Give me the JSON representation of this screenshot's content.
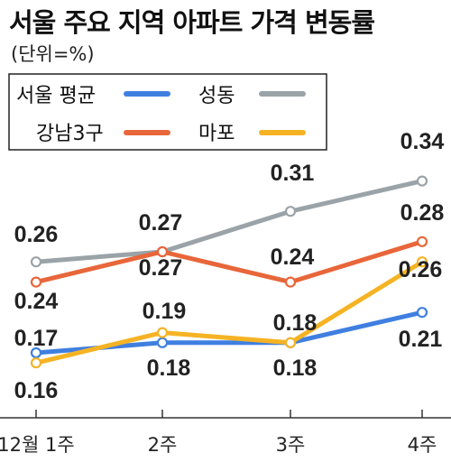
{
  "chart_data": {
    "type": "line",
    "title": "서울 주요 지역 아파트 가격 변동률",
    "subtitle": "(단위=%)",
    "categories": [
      "12월 1주",
      "2주",
      "3주",
      "4주"
    ],
    "series": [
      {
        "name": "서울 평균",
        "color": "#3f7fe0",
        "values": [
          0.17,
          0.18,
          0.18,
          0.21
        ]
      },
      {
        "name": "성동",
        "color": "#9aa3a8",
        "values": [
          0.26,
          0.27,
          0.31,
          0.34
        ]
      },
      {
        "name": "강남3구",
        "color": "#e8663a",
        "values": [
          0.24,
          0.27,
          0.24,
          0.28
        ]
      },
      {
        "name": "마포",
        "color": "#f5b324",
        "values": [
          0.16,
          0.19,
          0.18,
          0.26
        ]
      }
    ],
    "ylim": [
      0.13,
      0.38
    ],
    "legend_position": "top-left"
  }
}
